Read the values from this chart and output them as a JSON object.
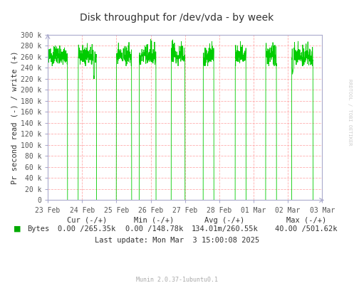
{
  "title": "Disk throughput for /dev/vda - by week",
  "ylabel": "Pr second read (-) / write (+)",
  "yticks": [
    0,
    20000,
    40000,
    60000,
    80000,
    100000,
    120000,
    140000,
    160000,
    180000,
    200000,
    220000,
    240000,
    260000,
    280000,
    300000
  ],
  "ytick_labels": [
    "0",
    "20 k",
    "40 k",
    "60 k",
    "80 k",
    "100 k",
    "120 k",
    "140 k",
    "160 k",
    "180 k",
    "200 k",
    "220 k",
    "240 k",
    "260 k",
    "280 k",
    "300 k"
  ],
  "xtick_labels": [
    "23 Feb",
    "24 Feb",
    "25 Feb",
    "26 Feb",
    "27 Feb",
    "28 Feb",
    "01 Mar",
    "02 Mar",
    "03 Mar"
  ],
  "ylim": [
    0,
    300000
  ],
  "bg_color": "#FFFFFF",
  "plot_bg_color": "#FFFFFF",
  "grid_color": "#FF9999",
  "grid_style": "--",
  "line_color": "#00CC00",
  "title_color": "#333333",
  "axis_color": "#AAAACC",
  "tick_color": "#555555",
  "legend_square_color": "#00AA00",
  "footer_color": "#AAAAAA",
  "rrdtool_text": "RRDTOOL / TOBI OETIKER",
  "legend_label": "Bytes",
  "cur_label": "Cur (-/+)",
  "min_label": "Min (-/+)",
  "avg_label": "Avg (-/+)",
  "max_label": "Max (-/+)",
  "cur_val": "0.00 /265.35k",
  "min_val": "0.00 /148.78k",
  "avg_val": "134.01m/260.55k",
  "max_val": "40.00 /501.62k",
  "last_update": "Last update: Mon Mar  3 15:00:08 2025",
  "munin_version": "Munin 2.0.37-1ubuntu0.1"
}
